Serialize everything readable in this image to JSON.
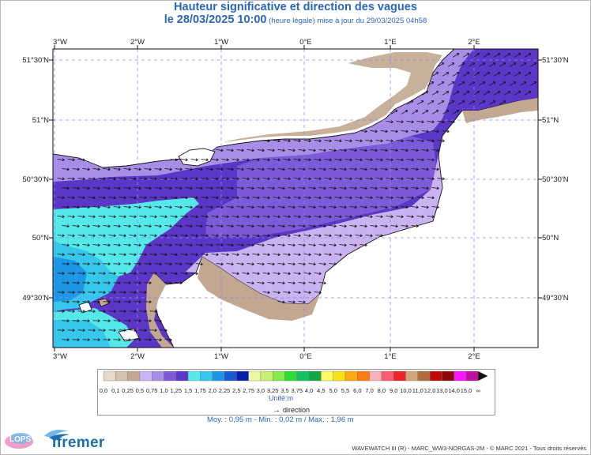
{
  "title": "Hauteur significative et direction des vagues",
  "subtitle_main": "le 28/03/2025 10:00",
  "subtitle_sub": " (heure légale) mise à jour du 29/03/2025 04h58",
  "axes": {
    "lon_labels": [
      "3°W",
      "2°W",
      "1°W",
      "0°E",
      "1°E",
      "2°E"
    ],
    "lat_labels": [
      "51°30'N",
      "51°N",
      "50°30'N",
      "50°N",
      "49°30'N"
    ]
  },
  "legend": {
    "levels": [
      "0,0",
      "0,1",
      "0,25",
      "0,5",
      "0,75",
      "1,0",
      "1,25",
      "1,5",
      "1,75",
      "2,0",
      "2,25",
      "2,5",
      "2,75",
      "3,0",
      "3,25",
      "3,5",
      "3,75",
      "4,0",
      "4,5",
      "5,0",
      "5,5",
      "6,0",
      "7,0",
      "8,0",
      "9,0",
      "10,0",
      "11,0",
      "12,0",
      "13,0",
      "14,0",
      "15,0",
      "∞"
    ],
    "colors": [
      "#e8d8c8",
      "#d6c3ad",
      "#c2a890",
      "#cbb2f0",
      "#a98de6",
      "#7f5ad8",
      "#5c36c6",
      "#55e8e8",
      "#36c8ea",
      "#1e96e6",
      "#1a58d2",
      "#0a1cac",
      "#e9f9a6",
      "#c8f070",
      "#84ea4c",
      "#30dc36",
      "#10c260",
      "#10a840",
      "#fcfc62",
      "#fce016",
      "#fcaa14",
      "#fc7c14",
      "#fcb0ba",
      "#f85c70",
      "#ee2424",
      "#d2a47a",
      "#b06c3a",
      "#c20808",
      "#8a0808",
      "#ff14ff",
      "#be10a0"
    ],
    "unit": "Unité:m",
    "direction_label": "direction"
  },
  "stats": "Moy. : 0,95 m   -   Min. : 0,02 m / Max. : 1,96 m",
  "copyright": "WAVEWATCH III (R) - MARC_WW3-NORGAS-2M - © MARC 2021 - Tous droits réservés",
  "logos": {
    "lops": "LOPS",
    "ifremer": "Ifremer"
  }
}
